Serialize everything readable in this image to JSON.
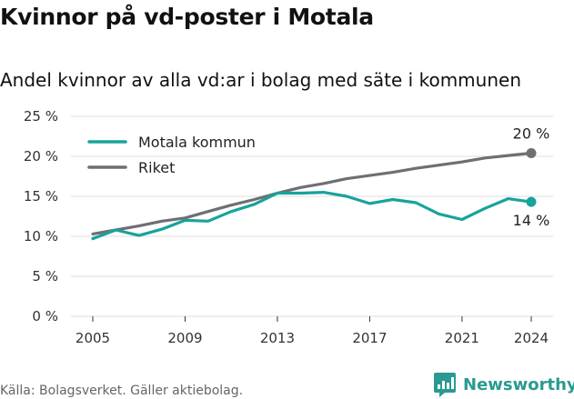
{
  "title": "Kvinnor på vd-poster i Motala",
  "subtitle": "Andel kvinnor av alla vd:ar i bolag med säte i kommunen",
  "source": "Källa: Bolagsverket. Gäller aktiebolag.",
  "brand": "Newsworthy",
  "colors": {
    "series1": "#18a39a",
    "series2": "#6f6e73",
    "grid": "#dedede",
    "brand": "#2a9a90"
  },
  "chart_data": {
    "type": "line",
    "x": [
      2005,
      2006,
      2007,
      2008,
      2009,
      2010,
      2011,
      2012,
      2013,
      2014,
      2015,
      2016,
      2017,
      2018,
      2019,
      2020,
      2021,
      2022,
      2023,
      2024
    ],
    "series": [
      {
        "name": "Motala kommun",
        "values": [
          9.7,
          10.8,
          10.1,
          10.9,
          12.0,
          11.9,
          13.1,
          14.0,
          15.4,
          15.4,
          15.5,
          15.0,
          14.1,
          14.6,
          14.2,
          12.8,
          12.1,
          13.5,
          14.7,
          14.3
        ],
        "end_label": "14 %"
      },
      {
        "name": "Riket",
        "values": [
          10.3,
          10.8,
          11.3,
          11.9,
          12.3,
          13.1,
          13.9,
          14.6,
          15.4,
          16.1,
          16.6,
          17.2,
          17.6,
          18.0,
          18.5,
          18.9,
          19.3,
          19.8,
          20.1,
          20.4
        ],
        "end_label": "20 %"
      }
    ],
    "yticks": [
      "0 %",
      "5 %",
      "10 %",
      "15 %",
      "20 %",
      "25 %"
    ],
    "xticks": [
      2005,
      2009,
      2013,
      2017,
      2021,
      2024
    ],
    "ylim": [
      0,
      25
    ],
    "xlim": [
      2005,
      2024
    ],
    "grid": true,
    "legend": "top-left"
  }
}
